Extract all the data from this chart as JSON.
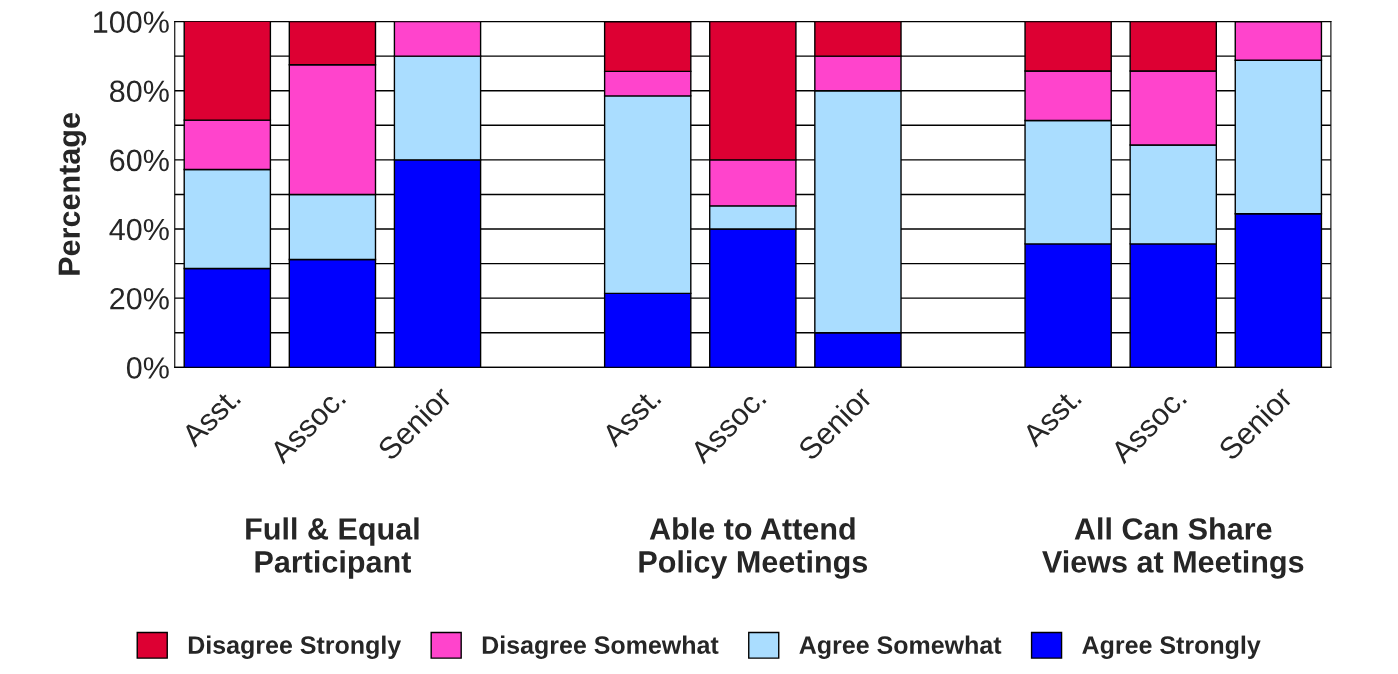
{
  "chart_data": {
    "type": "bar",
    "stacked": true,
    "ylabel": "Percentage",
    "categories": [
      "Asst.",
      "Assoc.",
      "Senior",
      null,
      "Asst.",
      "Assoc.",
      "Senior",
      null,
      "Asst.",
      "Assoc.",
      "Senior"
    ],
    "series": [
      {
        "name": "Agree Strongly",
        "color": "#0000ff",
        "values": [
          28.6,
          31.2,
          60,
          null,
          21.4,
          40,
          10,
          null,
          35.7,
          35.7,
          44.4
        ]
      },
      {
        "name": "Agree Somewhat",
        "color": "#aaddff",
        "values": [
          28.6,
          18.8,
          30,
          null,
          57.1,
          6.7,
          70,
          null,
          35.7,
          28.6,
          44.4
        ]
      },
      {
        "name": "Disagree Somewhat",
        "color": "#ff44cc",
        "values": [
          14.3,
          37.5,
          10,
          null,
          7.1,
          13.3,
          10,
          null,
          14.3,
          21.4,
          11.1
        ]
      },
      {
        "name": "Disagree Strongly",
        "color": "#dd0033",
        "values": [
          28.6,
          12.5,
          0,
          null,
          14.3,
          40,
          10,
          null,
          14.3,
          14.3,
          0
        ]
      }
    ],
    "ylim": [
      0,
      100
    ],
    "yticks": [
      {
        "value": 0,
        "label": "0%"
      },
      {
        "value": 10,
        "label": null
      },
      {
        "value": 20,
        "label": "20%"
      },
      {
        "value": 30,
        "label": null
      },
      {
        "value": 40,
        "label": "40%"
      },
      {
        "value": 50,
        "label": null
      },
      {
        "value": 60,
        "label": "60%"
      },
      {
        "value": 70,
        "label": null
      },
      {
        "value": 80,
        "label": "80%"
      },
      {
        "value": 90,
        "label": null
      },
      {
        "value": 100,
        "label": "100%"
      }
    ],
    "grid": "y",
    "legend": "bottom",
    "annotations": [
      "Full & Equal\nParticipant",
      "Able to Attend\nPolicy Meetings",
      "All Can Share\nViews at Meetings"
    ]
  }
}
